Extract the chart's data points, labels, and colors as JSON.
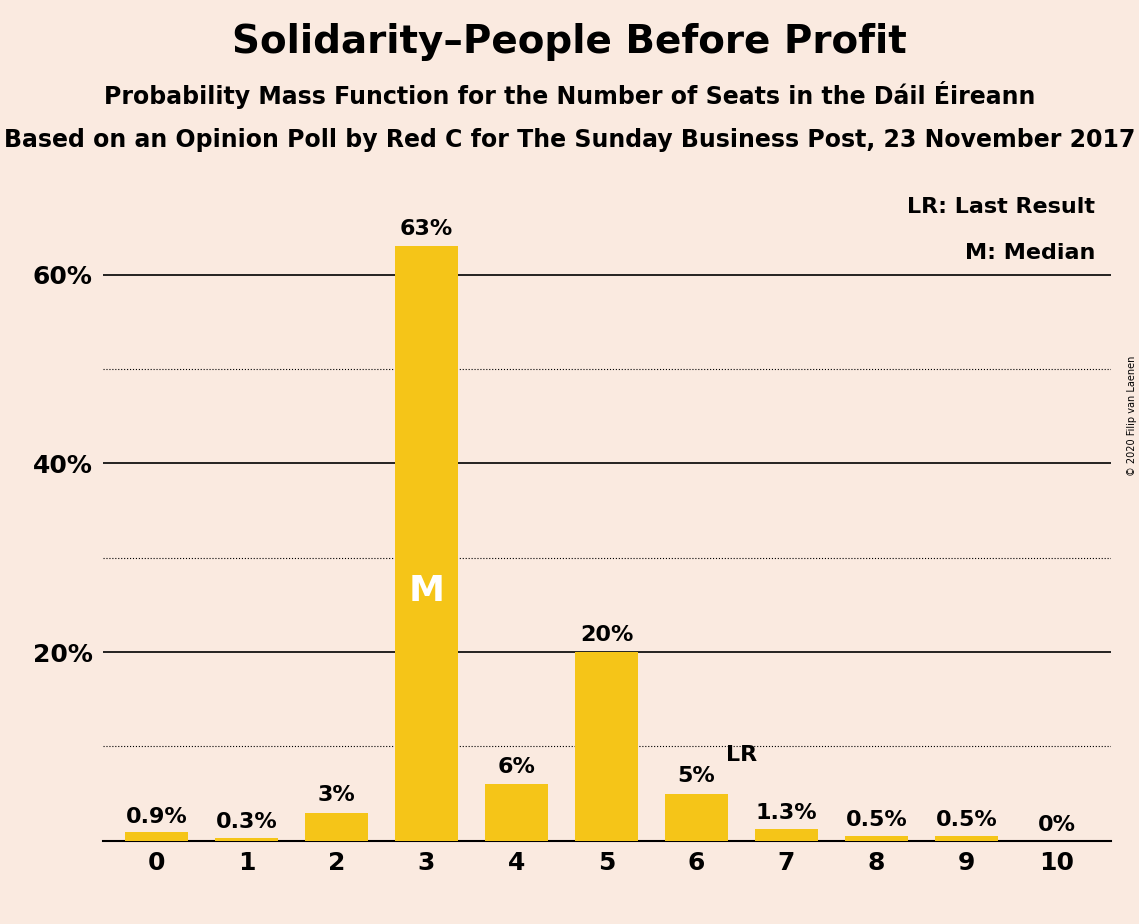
{
  "title": "Solidarity–People Before Profit",
  "subtitle1": "Probability Mass Function for the Number of Seats in the Dáil Éireann",
  "subtitle2": "Based on an Opinion Poll by Red C for The Sunday Business Post, 23 November 2017",
  "copyright": "© 2020 Filip van Laenen",
  "categories": [
    0,
    1,
    2,
    3,
    4,
    5,
    6,
    7,
    8,
    9,
    10
  ],
  "values": [
    0.9,
    0.3,
    3.0,
    63.0,
    6.0,
    20.0,
    5.0,
    1.3,
    0.5,
    0.5,
    0.0
  ],
  "bar_color": "#F5C518",
  "background_color": "#FAEAE0",
  "median_bar": 3,
  "lr_bar": 6,
  "median_label": "M",
  "lr_label": "LR",
  "legend_lr": "LR: Last Result",
  "legend_m": "M: Median",
  "solid_lines": [
    20,
    40,
    60
  ],
  "dotted_lines": [
    10,
    30,
    50
  ],
  "ytick_positions": [
    20,
    40,
    60
  ],
  "ytick_labels": [
    "20%",
    "40%",
    "60%"
  ],
  "ylim": [
    0,
    70
  ],
  "bar_labels": [
    "0.9%",
    "0.3%",
    "3%",
    "63%",
    "6%",
    "20%",
    "5%",
    "1.3%",
    "0.5%",
    "0.5%",
    "0%"
  ],
  "title_fontsize": 28,
  "subtitle1_fontsize": 17,
  "subtitle2_fontsize": 17,
  "bar_label_fontsize": 16,
  "axis_tick_fontsize": 18,
  "legend_fontsize": 16,
  "median_label_fontsize": 26,
  "lr_label_fontsize": 16
}
